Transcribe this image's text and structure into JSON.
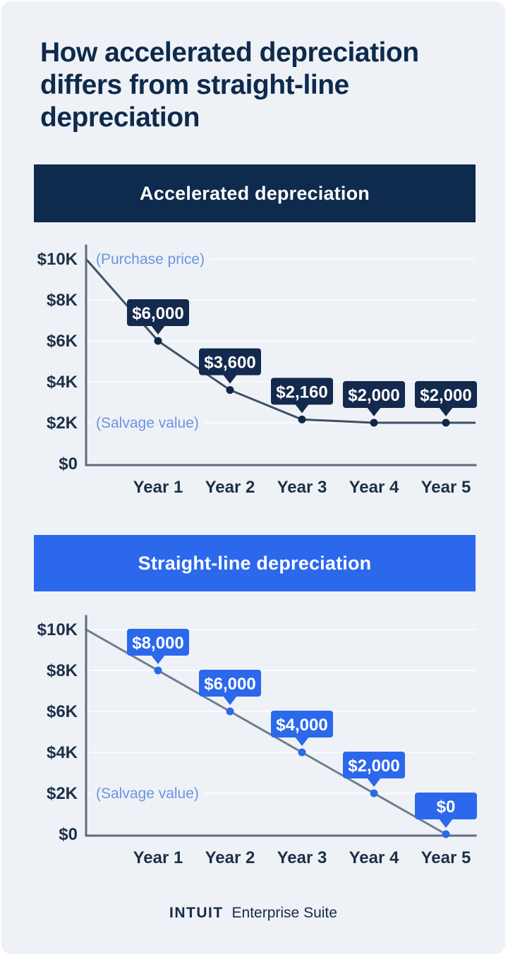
{
  "page": {
    "title": "How accelerated depreciation differs from straight-line depreciation",
    "footer": {
      "brand": "INTUIT",
      "product": "Enterprise Suite"
    }
  },
  "style": {
    "background": "#eef2f7",
    "navy": "#0e2a4c",
    "blue": "#2b68ec",
    "grid_color": "#f9fbfd",
    "axis_color": "#5d6b7c",
    "tick_color": "#1e3048",
    "annotation_color": "#6d93e3",
    "callout_text_color": "#ffffff"
  },
  "chart_data": [
    {
      "type": "line",
      "title": "Accelerated depreciation",
      "x": [
        "Year 1",
        "Year 2",
        "Year 3",
        "Year 4",
        "Year 5"
      ],
      "start_value": 10000,
      "values": [
        6000,
        3600,
        2160,
        2000,
        2000
      ],
      "callouts": [
        "$6,000",
        "$3,600",
        "$2,160",
        "$2,000",
        "$2,000"
      ],
      "y_ticks": {
        "labels": [
          "$10K",
          "$8K",
          "$6K",
          "$4K",
          "$2K",
          "$0"
        ],
        "values": [
          10000,
          8000,
          6000,
          4000,
          2000,
          0
        ]
      },
      "ylim": [
        0,
        10000
      ],
      "grid": true,
      "legend": "none",
      "annotations": [
        {
          "text": "(Purchase price)",
          "value": 10000
        },
        {
          "text": "(Salvage value)",
          "value": 2000
        }
      ],
      "extend_line_to_right": true,
      "line_color": "#3f5065",
      "point_color": "#0f2747",
      "callout_bg": "#13294e"
    },
    {
      "type": "line",
      "title": "Straight-line depreciation",
      "x": [
        "Year 1",
        "Year 2",
        "Year 3",
        "Year 4",
        "Year 5"
      ],
      "start_value": 10000,
      "values": [
        8000,
        6000,
        4000,
        2000,
        0
      ],
      "callouts": [
        "$8,000",
        "$6,000",
        "$4,000",
        "$2,000",
        "$0"
      ],
      "y_ticks": {
        "labels": [
          "$10K",
          "$8K",
          "$6K",
          "$4K",
          "$2K",
          "$0"
        ],
        "values": [
          10000,
          8000,
          6000,
          4000,
          2000,
          0
        ]
      },
      "ylim": [
        0,
        10000
      ],
      "grid": true,
      "legend": "none",
      "annotations": [
        {
          "text": "(Salvage value)",
          "value": 2000
        }
      ],
      "extend_line_to_right": false,
      "line_color": "#6e7e8e",
      "point_color": "#2b68ec",
      "callout_bg": "#2b68ec"
    }
  ]
}
